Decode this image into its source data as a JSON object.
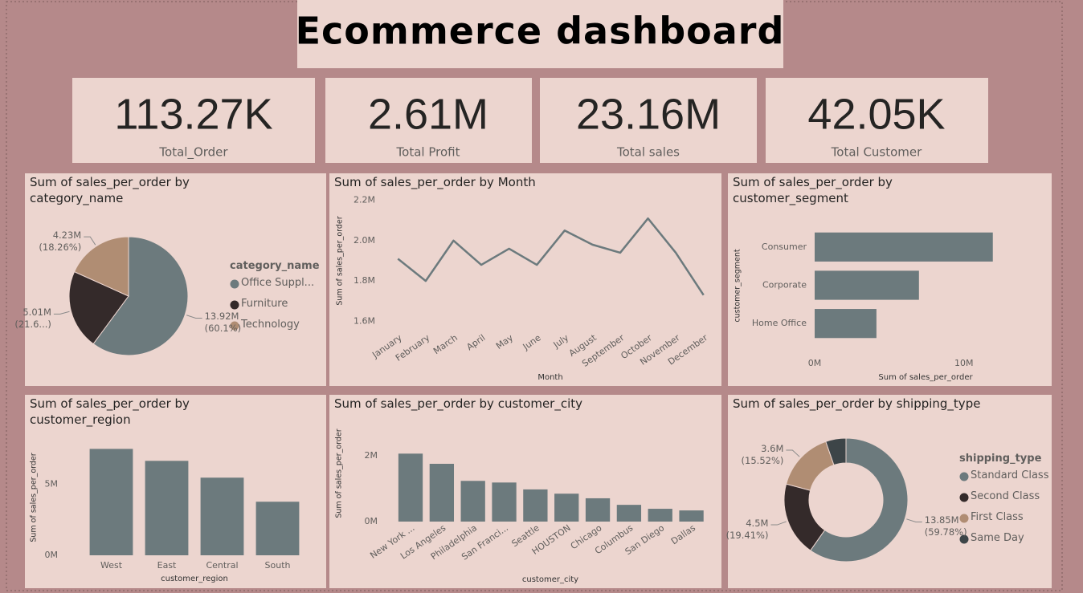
{
  "title": "Ecommerce dashboard",
  "kpis": [
    {
      "value": "113.27K",
      "label": "Total_Order"
    },
    {
      "value": "2.61M",
      "label": "Total Profit"
    },
    {
      "value": "23.16M",
      "label": "Total sales"
    },
    {
      "value": "42.05K",
      "label": "Total Customer"
    }
  ],
  "chart_data": [
    {
      "type": "pie",
      "title": "Sum of sales_per_order by category_name",
      "legend_title": "category_name",
      "legend": "right",
      "categories": [
        "Office Suppl...",
        "Furniture",
        "Technology"
      ],
      "values": [
        13.92,
        5.01,
        4.23
      ],
      "value_labels": [
        "13.92M (60.1%)",
        "5.01M (21.6...)",
        "4.23M (18.26%)"
      ],
      "colors": [
        "#6c7a7d",
        "#342a2a",
        "#b08d73"
      ]
    },
    {
      "type": "line",
      "title": "Sum of sales_per_order by Month",
      "xlabel": "Month",
      "ylabel": "Sum of sales_per_order",
      "categories": [
        "January",
        "February",
        "March",
        "April",
        "May",
        "June",
        "July",
        "August",
        "September",
        "October",
        "November",
        "December"
      ],
      "values": [
        1.91,
        1.8,
        2.0,
        1.88,
        1.96,
        1.88,
        2.05,
        1.98,
        1.94,
        2.11,
        1.94,
        1.73
      ],
      "color": "#6c7a7d",
      "ylim": [
        1.55,
        2.25
      ],
      "yticks": [
        {
          "value": 1.6,
          "label": "1.6M"
        },
        {
          "value": 1.8,
          "label": "1.8M"
        },
        {
          "value": 2.0,
          "label": "2.0M"
        },
        {
          "value": 2.2,
          "label": "2.2M"
        }
      ],
      "grid": false
    },
    {
      "type": "bar",
      "orientation": "horizontal",
      "title": "Sum of sales_per_order by customer_segment",
      "xlabel": "Sum of sales_per_order",
      "ylabel": "customer_segment",
      "categories": [
        "Consumer",
        "Corporate",
        "Home Office"
      ],
      "values": [
        11.94,
        6.99,
        4.14
      ],
      "color": "#6c7a7d",
      "xlim": [
        0,
        14
      ],
      "xticks": [
        {
          "value": 0,
          "label": "0M"
        },
        {
          "value": 10,
          "label": "10M"
        }
      ],
      "grid": false
    },
    {
      "type": "bar",
      "title": "Sum of sales_per_order by customer_region",
      "xlabel": "customer_region",
      "ylabel": "Sum of sales_per_order",
      "categories": [
        "West",
        "East",
        "Central",
        "South"
      ],
      "values": [
        7.47,
        6.63,
        5.45,
        3.76
      ],
      "color": "#6c7a7d",
      "ylim": [
        0,
        8
      ],
      "yticks": [
        {
          "value": 0,
          "label": "0M"
        },
        {
          "value": 5,
          "label": "5M"
        }
      ],
      "grid": false
    },
    {
      "type": "bar",
      "title": "Sum of sales_per_order by customer_city",
      "xlabel": "customer_city",
      "ylabel": "Sum of sales_per_order",
      "categories": [
        "New York ...",
        "Los Angeles",
        "Philadelphia",
        "San Franci...",
        "Seattle",
        "HOUSTON",
        "Chicago",
        "Columbus",
        "San Diego",
        "Dallas"
      ],
      "values": [
        2.07,
        1.76,
        1.24,
        1.19,
        0.98,
        0.85,
        0.71,
        0.51,
        0.39,
        0.34
      ],
      "color": "#6c7a7d",
      "ylim": [
        0,
        2.2
      ],
      "yticks": [
        {
          "value": 0,
          "label": "0M"
        },
        {
          "value": 2,
          "label": "2M"
        }
      ],
      "grid": false
    },
    {
      "type": "donut",
      "title": "Sum of sales_per_order by shipping_type",
      "legend_title": "shipping_type",
      "legend": "right",
      "categories": [
        "Standard Class",
        "Second Class",
        "First Class",
        "Same Day"
      ],
      "values": [
        13.85,
        4.5,
        3.6,
        1.23
      ],
      "value_labels": [
        "13.85M (59.78%)",
        "4.5M (19.41%)",
        "3.6M (15.52%)",
        null
      ],
      "colors": [
        "#6c7a7d",
        "#342a2a",
        "#b08d73",
        "#3d4548"
      ]
    }
  ]
}
